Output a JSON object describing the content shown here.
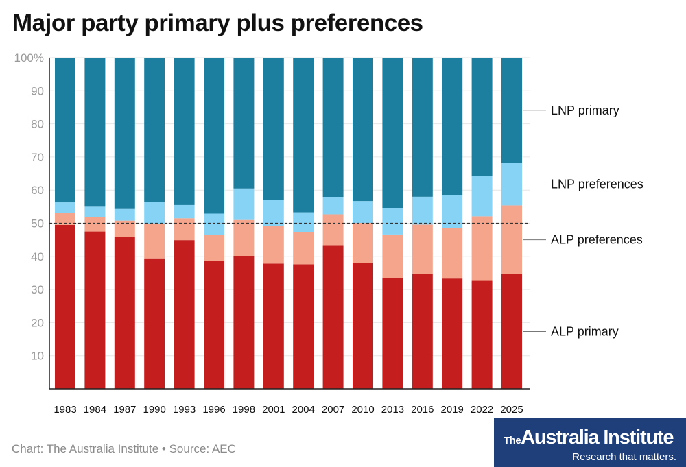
{
  "header": {
    "title": "Major party primary plus preferences"
  },
  "footer": {
    "credit": "Chart: The Australia Institute • Source: AEC",
    "logo_the": "The",
    "logo_name": "Australia Institute",
    "logo_tagline": "Research that matters."
  },
  "colors": {
    "alp_primary": "#c41e1f",
    "alp_preferences": "#f5a58c",
    "lnp_preferences": "#87d3f5",
    "lnp_primary": "#1d7fa0",
    "grid": "#e6e6e6",
    "axis": "#222222",
    "tick_text": "#9a9a9a",
    "reference": "#333333"
  },
  "chart_data": {
    "type": "bar",
    "stacked": true,
    "title": "Major party primary plus preferences",
    "categories": [
      "1983",
      "1984",
      "1987",
      "1990",
      "1993",
      "1996",
      "1998",
      "2001",
      "2004",
      "2007",
      "2010",
      "2013",
      "2016",
      "2019",
      "2022",
      "2025"
    ],
    "series": [
      {
        "name": "ALP primary",
        "key": "alp_primary",
        "values": [
          49.5,
          47.5,
          45.8,
          39.4,
          44.9,
          38.7,
          40.1,
          37.8,
          37.6,
          43.4,
          38.0,
          33.4,
          34.7,
          33.3,
          32.6,
          34.6
        ]
      },
      {
        "name": "ALP preferences",
        "key": "alp_preferences",
        "values": [
          3.7,
          4.3,
          5.0,
          10.5,
          6.6,
          7.7,
          10.9,
          11.3,
          9.8,
          9.3,
          12.1,
          13.2,
          14.9,
          15.2,
          19.5,
          20.8
        ]
      },
      {
        "name": "LNP preferences",
        "key": "lnp_preferences",
        "values": [
          3.1,
          3.2,
          3.5,
          6.5,
          4.0,
          6.5,
          9.5,
          7.9,
          5.9,
          5.2,
          6.6,
          8.0,
          8.4,
          9.9,
          12.2,
          12.8
        ]
      },
      {
        "name": "LNP primary",
        "key": "lnp_primary",
        "values": [
          43.7,
          45.0,
          45.7,
          43.6,
          44.5,
          47.1,
          39.5,
          43.0,
          46.7,
          42.1,
          43.3,
          45.4,
          42.0,
          41.6,
          35.7,
          31.8
        ]
      }
    ],
    "ylim": [
      0,
      100
    ],
    "yticks": [
      10,
      20,
      30,
      40,
      50,
      60,
      70,
      80,
      90,
      100
    ],
    "ytick_labels": [
      "10",
      "20",
      "30",
      "40",
      "50",
      "60",
      "70",
      "80",
      "90",
      "100%"
    ],
    "reference_line": 50,
    "grid": true,
    "legend": {
      "placement": "right",
      "style": "direct-labels"
    },
    "xlabel": "",
    "ylabel": ""
  }
}
